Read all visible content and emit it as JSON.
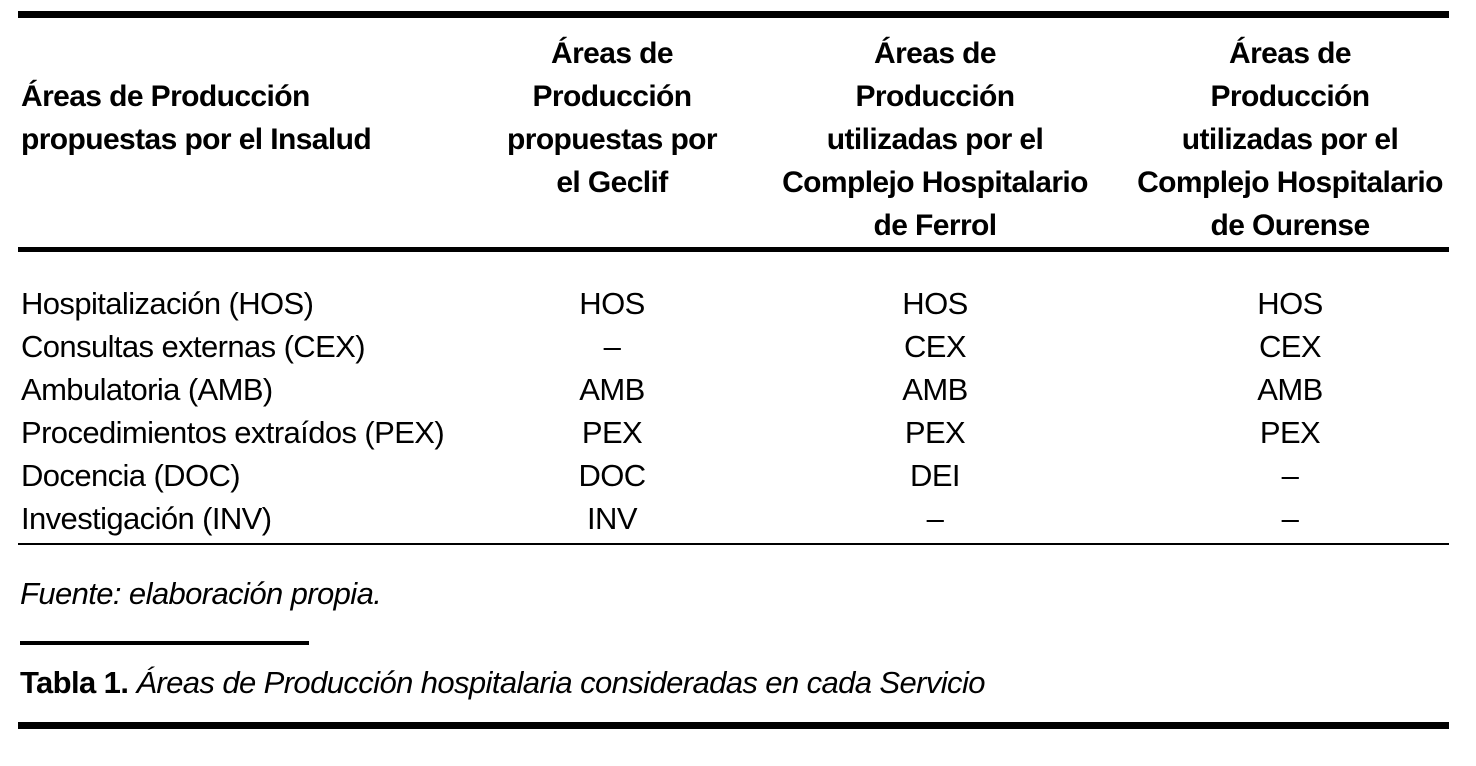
{
  "page": {
    "background_color": "#ffffff",
    "text_color": "#000000"
  },
  "table": {
    "headers": [
      "Áreas de Producción\npropuestas por el Insalud",
      "Áreas de\nProducción\npropuestas por\nel Geclif",
      "Áreas de\nProducción\nutilizadas por el\nComplejo Hospitalario\nde Ferrol",
      "Áreas de\nProducción\nutilizadas por el\nComplejo Hospitalario\nde Ourense"
    ],
    "rows": [
      [
        "Hospitalización (HOS)",
        "HOS",
        "HOS",
        "HOS"
      ],
      [
        "Consultas externas (CEX)",
        "–",
        "CEX",
        "CEX"
      ],
      [
        "Ambulatoria (AMB)",
        "AMB",
        "AMB",
        "AMB"
      ],
      [
        "Procedimientos extraídos (PEX)",
        "PEX",
        "PEX",
        "PEX"
      ],
      [
        "Docencia (DOC)",
        "DOC",
        "DEI",
        "–"
      ],
      [
        "Investigación (INV)",
        "INV",
        "–",
        "–"
      ]
    ]
  },
  "source_note": "Fuente: elaboración propia.",
  "caption": {
    "label": "Tabla 1.",
    "text": "Áreas de Producción hospitalaria consideradas en cada Servicio"
  }
}
